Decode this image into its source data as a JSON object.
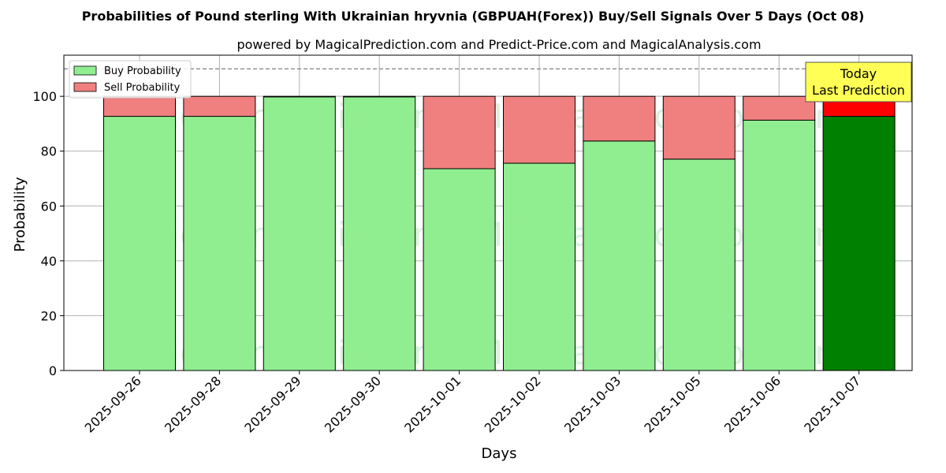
{
  "chart_data": {
    "type": "bar",
    "stacked": true,
    "title": "Probabilities of Pound sterling With Ukrainian hryvnia (GBPUAH(Forex)) Buy/Sell Signals Over 5 Days (Oct 08)",
    "subtitle": "powered by MagicalPrediction.com and Predict-Price.com and MagicalAnalysis.com",
    "xlabel": "Days",
    "ylabel": "Probability",
    "ylim": [
      0,
      115
    ],
    "yticks": [
      0,
      20,
      40,
      60,
      80,
      100
    ],
    "grid": true,
    "legend_position": "top-left",
    "reference_line": 110,
    "categories": [
      "2025-09-26",
      "2025-09-28",
      "2025-09-29",
      "2025-09-30",
      "2025-10-01",
      "2025-10-02",
      "2025-10-03",
      "2025-10-05",
      "2025-10-06",
      "2025-10-07"
    ],
    "series": [
      {
        "name": "Buy Probability",
        "color": "#90ee90",
        "highlight_color": "#008000",
        "values": [
          92.7,
          92.7,
          99.8,
          99.8,
          73.6,
          75.6,
          83.7,
          77.1,
          91.3,
          92.7
        ]
      },
      {
        "name": "Sell Probability",
        "color": "#f08080",
        "highlight_color": "#ff0000",
        "values": [
          7.3,
          7.3,
          0.2,
          0.2,
          26.4,
          24.4,
          16.3,
          22.9,
          8.7,
          7.3
        ]
      }
    ],
    "highlight_index": 9,
    "annotation": {
      "line1": "Today",
      "line2": "Last Prediction",
      "background": "#ffff55"
    },
    "watermarks": [
      "MagicalAnalysis.com",
      "MagicalPrediction.com"
    ]
  }
}
